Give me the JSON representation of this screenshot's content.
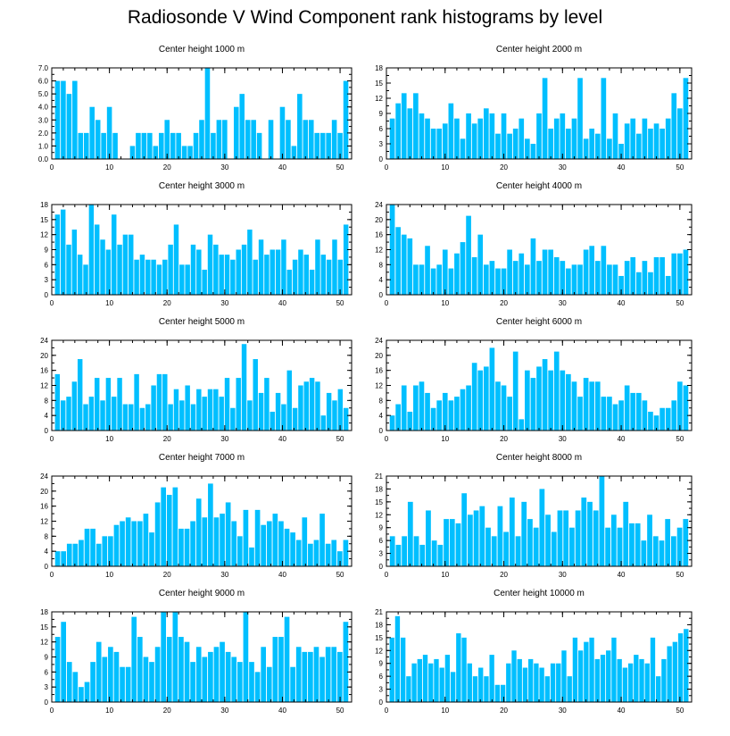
{
  "figure": {
    "title": "Radiosonde V Wind Component rank histograms by level"
  },
  "chart_data": [
    {
      "type": "bar",
      "title": "Center height 1000 m",
      "ylim": [
        0,
        7
      ],
      "yticks": [
        "0.0",
        "1.0",
        "2.0",
        "3.0",
        "4.0",
        "5.0",
        "6.0",
        "7.0"
      ],
      "xticks": [
        0,
        10,
        20,
        30,
        40,
        50
      ],
      "xlim": [
        0,
        52
      ],
      "values": [
        6,
        6,
        5,
        6,
        2,
        2,
        4,
        3,
        2,
        4,
        2,
        0,
        0,
        1,
        2,
        2,
        2,
        1,
        2,
        3,
        2,
        2,
        1,
        1,
        2,
        3,
        7,
        2,
        3,
        3,
        0,
        4,
        5,
        3,
        3,
        2,
        0,
        3,
        0,
        4,
        3,
        1,
        5,
        3,
        3,
        2,
        2,
        2,
        3,
        2,
        6
      ]
    },
    {
      "type": "bar",
      "title": "Center height 2000 m",
      "ylim": [
        0,
        18
      ],
      "yticks": [
        0,
        3,
        6,
        9,
        12,
        15,
        18
      ],
      "xticks": [
        0,
        10,
        20,
        30,
        40,
        50
      ],
      "xlim": [
        0,
        52
      ],
      "values": [
        8,
        11,
        13,
        10,
        13,
        9,
        8,
        6,
        6,
        7,
        11,
        8,
        4,
        9,
        7,
        8,
        10,
        9,
        5,
        9,
        5,
        6,
        8,
        4,
        3,
        9,
        16,
        6,
        8,
        9,
        6,
        8,
        16,
        4,
        6,
        5,
        16,
        4,
        9,
        3,
        7,
        8,
        5,
        8,
        6,
        7,
        6,
        8,
        13,
        10,
        16
      ]
    },
    {
      "type": "bar",
      "title": "Center height 3000 m",
      "ylim": [
        0,
        18
      ],
      "yticks": [
        0,
        3,
        6,
        9,
        12,
        15,
        18
      ],
      "xticks": [
        0,
        10,
        20,
        30,
        40,
        50
      ],
      "xlim": [
        0,
        52
      ],
      "values": [
        16,
        17,
        10,
        13,
        8,
        6,
        18,
        14,
        11,
        9,
        16,
        10,
        12,
        12,
        7,
        8,
        7,
        7,
        6,
        7,
        10,
        14,
        6,
        6,
        10,
        9,
        5,
        12,
        10,
        8,
        8,
        7,
        9,
        10,
        13,
        7,
        11,
        8,
        9,
        9,
        11,
        5,
        7,
        9,
        8,
        5,
        11,
        8,
        7,
        11,
        7,
        14
      ]
    },
    {
      "type": "bar",
      "title": "Center height 4000 m",
      "ylim": [
        0,
        24
      ],
      "yticks": [
        0,
        4,
        8,
        12,
        16,
        20,
        24
      ],
      "xticks": [
        0,
        10,
        20,
        30,
        40,
        50
      ],
      "xlim": [
        0,
        52
      ],
      "values": [
        24,
        18,
        16,
        15,
        8,
        8,
        13,
        7,
        8,
        12,
        7,
        11,
        14,
        21,
        10,
        16,
        8,
        9,
        7,
        7,
        12,
        9,
        11,
        8,
        15,
        9,
        12,
        12,
        10,
        9,
        7,
        8,
        8,
        12,
        13,
        9,
        13,
        8,
        8,
        5,
        9,
        10,
        6,
        9,
        6,
        10,
        10,
        5,
        11,
        11,
        12
      ]
    },
    {
      "type": "bar",
      "title": "Center height 5000 m",
      "ylim": [
        0,
        24
      ],
      "yticks": [
        0,
        4,
        8,
        12,
        16,
        20,
        24
      ],
      "xticks": [
        0,
        10,
        20,
        30,
        40,
        50
      ],
      "xlim": [
        0,
        52
      ],
      "values": [
        15,
        8,
        9,
        13,
        19,
        7,
        9,
        14,
        8,
        14,
        9,
        14,
        7,
        7,
        15,
        6,
        7,
        12,
        15,
        15,
        7,
        11,
        8,
        12,
        7,
        11,
        9,
        11,
        11,
        9,
        14,
        6,
        14,
        23,
        8,
        19,
        10,
        14,
        5,
        10,
        7,
        16,
        6,
        12,
        13,
        14,
        13,
        4,
        10,
        8,
        11,
        6
      ]
    },
    {
      "type": "bar",
      "title": "Center height 6000 m",
      "ylim": [
        0,
        24
      ],
      "yticks": [
        0,
        4,
        8,
        12,
        16,
        20,
        24
      ],
      "xticks": [
        0,
        10,
        20,
        30,
        40,
        50
      ],
      "xlim": [
        0,
        52
      ],
      "values": [
        4,
        7,
        12,
        5,
        12,
        13,
        10,
        6,
        8,
        10,
        8,
        9,
        11,
        12,
        18,
        16,
        17,
        22,
        13,
        12,
        9,
        21,
        3,
        16,
        14,
        17,
        19,
        16,
        21,
        16,
        15,
        13,
        9,
        14,
        13,
        13,
        9,
        9,
        7,
        8,
        12,
        10,
        10,
        8,
        5,
        4,
        6,
        6,
        8,
        13,
        12
      ]
    },
    {
      "type": "bar",
      "title": "Center height 7000 m",
      "ylim": [
        0,
        24
      ],
      "yticks": [
        0,
        4,
        8,
        12,
        16,
        20,
        24
      ],
      "xticks": [
        0,
        10,
        20,
        30,
        40,
        50
      ],
      "xlim": [
        0,
        52
      ],
      "values": [
        4,
        4,
        6,
        6,
        7,
        10,
        10,
        6,
        8,
        8,
        11,
        12,
        13,
        12,
        12,
        14,
        9,
        17,
        21,
        19,
        21,
        10,
        10,
        12,
        18,
        13,
        22,
        13,
        14,
        17,
        12,
        8,
        15,
        5,
        15,
        11,
        12,
        14,
        12,
        10,
        9,
        7,
        13,
        6,
        7,
        14,
        6,
        7,
        4,
        7
      ]
    },
    {
      "type": "bar",
      "title": "Center height 8000 m",
      "ylim": [
        0,
        21
      ],
      "yticks": [
        0,
        3,
        6,
        9,
        12,
        15,
        18,
        21
      ],
      "xticks": [
        0,
        10,
        20,
        30,
        40,
        50
      ],
      "xlim": [
        0,
        52
      ],
      "values": [
        7,
        5,
        7,
        15,
        7,
        5,
        13,
        6,
        5,
        11,
        11,
        10,
        17,
        12,
        13,
        14,
        9,
        7,
        14,
        8,
        16,
        7,
        15,
        11,
        9,
        18,
        12,
        8,
        13,
        13,
        9,
        13,
        16,
        15,
        13,
        21,
        9,
        12,
        9,
        15,
        10,
        10,
        6,
        12,
        7,
        6,
        11,
        7,
        9,
        11
      ]
    },
    {
      "type": "bar",
      "title": "Center height 9000 m",
      "ylim": [
        0,
        18
      ],
      "yticks": [
        0,
        3,
        6,
        9,
        12,
        15,
        18
      ],
      "xticks": [
        0,
        10,
        20,
        30,
        40,
        50
      ],
      "xlim": [
        0,
        52
      ],
      "values": [
        13,
        16,
        8,
        6,
        3,
        4,
        8,
        12,
        9,
        11,
        10,
        7,
        7,
        17,
        13,
        9,
        8,
        11,
        18,
        13,
        18,
        13,
        12,
        8,
        11,
        9,
        10,
        11,
        12,
        10,
        9,
        8,
        18,
        8,
        6,
        11,
        7,
        13,
        13,
        17,
        7,
        11,
        10,
        10,
        11,
        9,
        11,
        11,
        10,
        16
      ]
    },
    {
      "type": "bar",
      "title": "Center height 10000 m",
      "ylim": [
        0,
        21
      ],
      "yticks": [
        0,
        3,
        6,
        9,
        12,
        15,
        18,
        21
      ],
      "xticks": [
        0,
        10,
        20,
        30,
        40,
        50
      ],
      "xlim": [
        0,
        52
      ],
      "values": [
        15,
        20,
        15,
        6,
        9,
        10,
        11,
        9,
        10,
        8,
        11,
        7,
        16,
        15,
        9,
        6,
        8,
        6,
        11,
        4,
        4,
        9,
        12,
        10,
        8,
        10,
        9,
        8,
        6,
        9,
        9,
        12,
        6,
        15,
        12,
        14,
        15,
        10,
        11,
        12,
        15,
        10,
        8,
        9,
        11,
        10,
        9,
        15,
        6,
        10,
        13,
        14,
        16,
        17
      ]
    }
  ]
}
